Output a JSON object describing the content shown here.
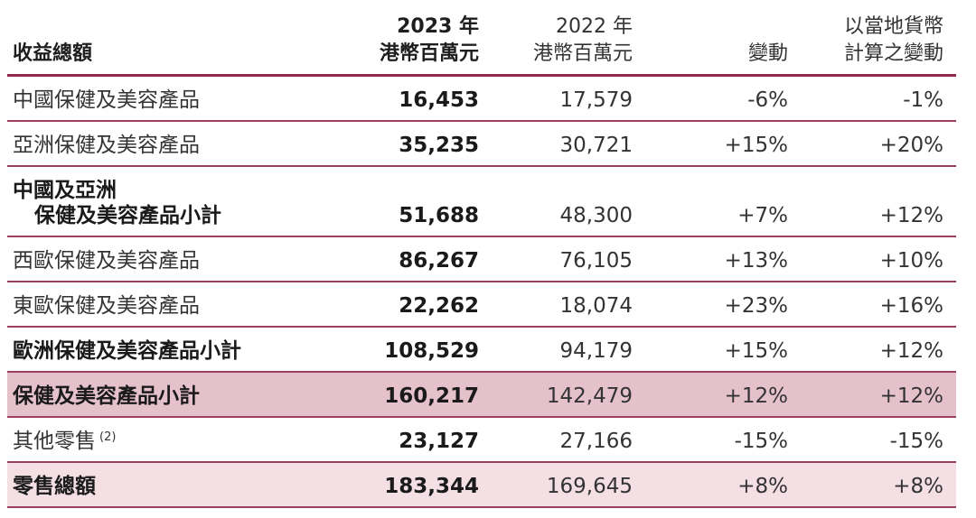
{
  "header": {
    "label": "收益總額",
    "col_2023_year": "2023 年",
    "col_2023_unit": "港幣百萬元",
    "col_2022_year": "2022 年",
    "col_2022_unit": "港幣百萬元",
    "col_change": "變動",
    "col_local_line1": "以當地貨幣",
    "col_local_line2": "計算之變動"
  },
  "rows": [
    {
      "label": "中國保健及美容產品",
      "v2023": "16,453",
      "v2022": "17,579",
      "change": "-6%",
      "local": "-1%"
    },
    {
      "label": "亞洲保健及美容產品",
      "v2023": "35,235",
      "v2022": "30,721",
      "change": "+15%",
      "local": "+20%"
    },
    {
      "label_line1": "中國及亞洲",
      "label_line2": "保健及美容產品小計",
      "v2023": "51,688",
      "v2022": "48,300",
      "change": "+7%",
      "local": "+12%"
    },
    {
      "label": "西歐保健及美容產品",
      "v2023": "86,267",
      "v2022": "76,105",
      "change": "+13%",
      "local": "+10%"
    },
    {
      "label": "東歐保健及美容產品",
      "v2023": "22,262",
      "v2022": "18,074",
      "change": "+23%",
      "local": "+16%"
    },
    {
      "label": "歐洲保健及美容產品小計",
      "v2023": "108,529",
      "v2022": "94,179",
      "change": "+15%",
      "local": "+12%"
    },
    {
      "label": "保健及美容產品小計",
      "v2023": "160,217",
      "v2022": "142,479",
      "change": "+12%",
      "local": "+12%"
    },
    {
      "label": "其他零售",
      "note": "(2)",
      "v2023": "23,127",
      "v2022": "27,166",
      "change": "-15%",
      "local": "-15%"
    },
    {
      "label": "零售總額",
      "v2023": "183,344",
      "v2022": "169,645",
      "change": "+8%",
      "local": "+8%"
    }
  ],
  "colors": {
    "rule": "#8c2b4f",
    "highlight_strong": "#e5c1cc",
    "highlight_light": "#f4dfe5"
  }
}
